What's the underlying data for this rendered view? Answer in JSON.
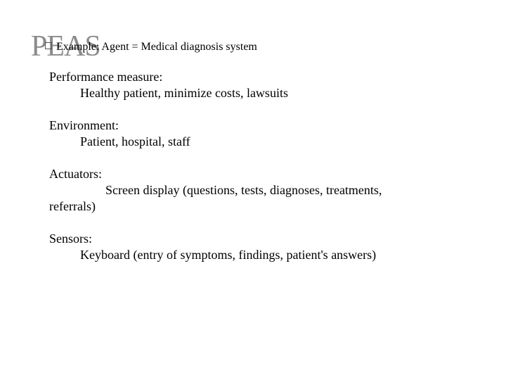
{
  "slide": {
    "title": "PEAS",
    "bullet_text": "Example: Agent = Medical diagnosis system",
    "sections": [
      {
        "title": "Performance measure:",
        "body": "Healthy patient, minimize costs, lawsuits"
      },
      {
        "title": "Environment:",
        "body": "Patient, hospital, staff"
      },
      {
        "title": "Actuators:",
        "body": "Screen display (questions, tests, diagnoses, treatments, referrals)",
        "wrap": true
      },
      {
        "title": "Sensors:",
        "body": "Keyboard (entry of symptoms, findings, patient's answers)"
      }
    ]
  },
  "style": {
    "background_color": "#ffffff",
    "text_color": "#000000",
    "title_color": "#8b8b8b",
    "title_fontsize": 42,
    "bullet_fontsize": 16,
    "body_fontsize": 18,
    "font_family": "Georgia, serif"
  }
}
